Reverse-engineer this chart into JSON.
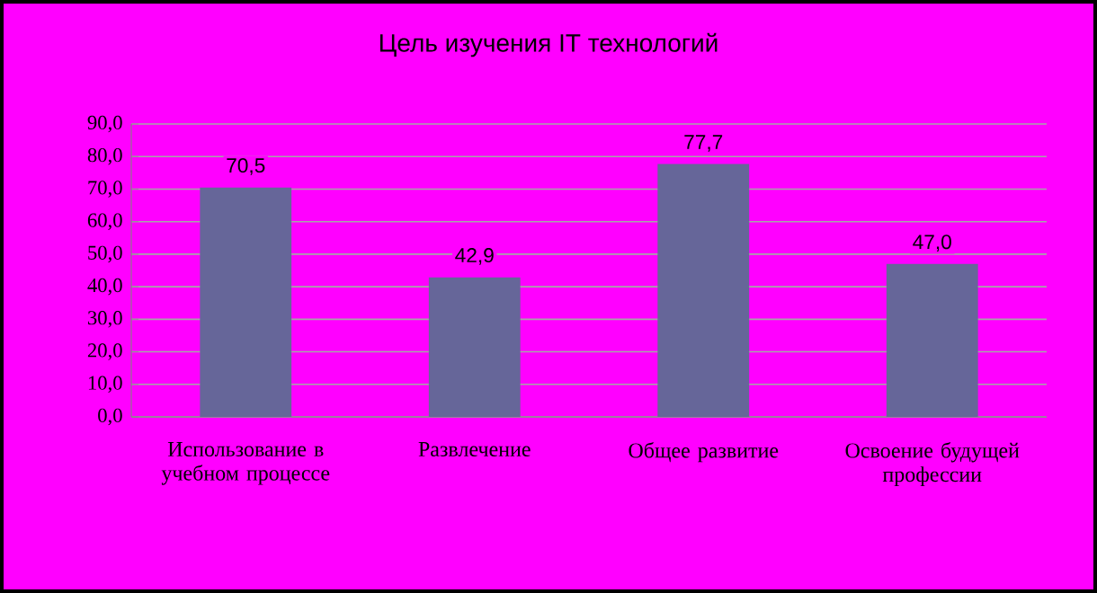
{
  "chart_data": {
    "type": "bar",
    "title": "Цель изучения IT технологий",
    "categories": [
      "Использование в учебном процессе",
      "Развлечение",
      "Общее развитие",
      "Освоение будущей профессии"
    ],
    "values": [
      70.5,
      42.9,
      77.7,
      47.0
    ],
    "value_labels": [
      "70,5",
      "42,9",
      "77,7",
      "47,0"
    ],
    "color": "#666699",
    "ylim": [
      0,
      90
    ],
    "yticks": [
      {
        "value": 0,
        "label": "0,0"
      },
      {
        "value": 10,
        "label": "10,0"
      },
      {
        "value": 20,
        "label": "20,0"
      },
      {
        "value": 30,
        "label": "30,0"
      },
      {
        "value": 40,
        "label": "40,0"
      },
      {
        "value": 50,
        "label": "50,0"
      },
      {
        "value": 60,
        "label": "60,0"
      },
      {
        "value": 70,
        "label": "70,0"
      },
      {
        "value": 80,
        "label": "80,0"
      },
      {
        "value": 90,
        "label": "90,0"
      }
    ],
    "grid": "y"
  }
}
